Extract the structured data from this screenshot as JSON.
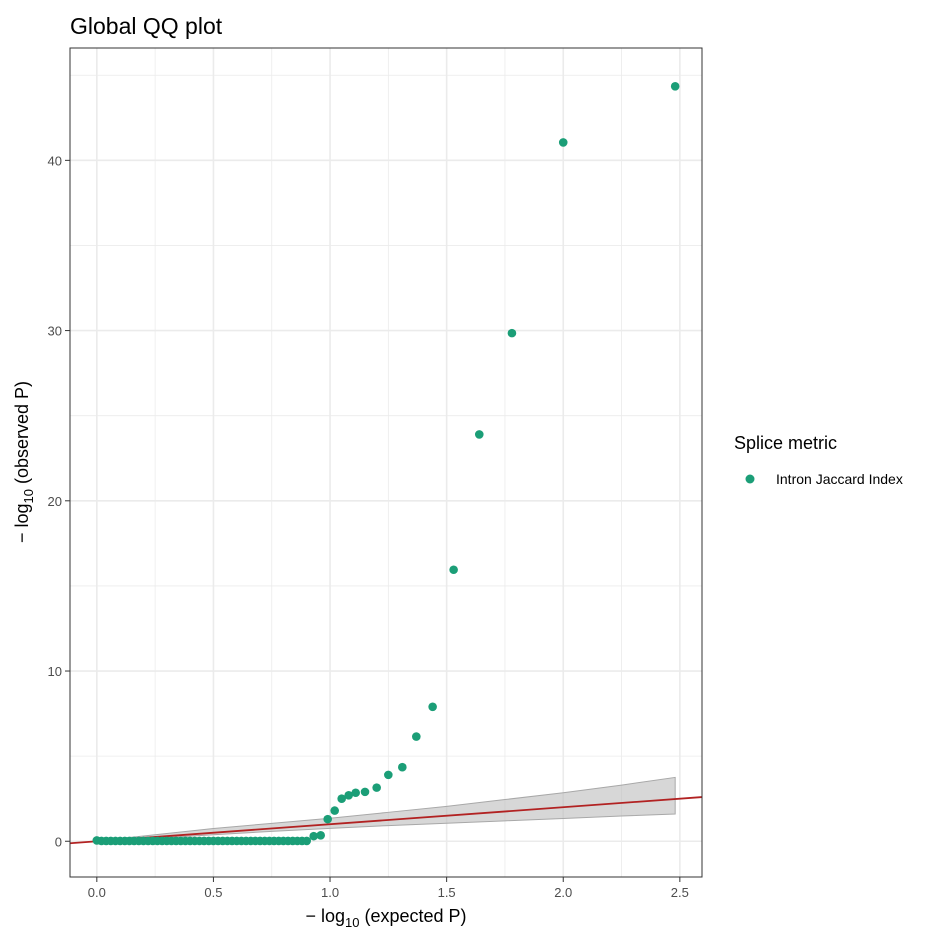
{
  "chart_data": {
    "type": "scatter",
    "title": "Global QQ plot",
    "xlabel": {
      "prefix": "− log",
      "sub": "10",
      "suffix": " (expected P)"
    },
    "ylabel": {
      "prefix": "− log",
      "sub": "10",
      "suffix": " (observed P)"
    },
    "xlim": [
      -0.115,
      2.595
    ],
    "ylim": [
      -2.1,
      46.6
    ],
    "x_ticks": [
      {
        "value": 0.0,
        "label": "0.0"
      },
      {
        "value": 0.5,
        "label": "0.5"
      },
      {
        "value": 1.0,
        "label": "1.0"
      },
      {
        "value": 1.5,
        "label": "1.5"
      },
      {
        "value": 2.0,
        "label": "2.0"
      },
      {
        "value": 2.5,
        "label": "2.5"
      }
    ],
    "y_ticks": [
      {
        "value": 0,
        "label": "0"
      },
      {
        "value": 10,
        "label": "10"
      },
      {
        "value": 20,
        "label": "20"
      },
      {
        "value": 30,
        "label": "30"
      },
      {
        "value": 40,
        "label": "40"
      }
    ],
    "x_minor_ticks": [
      0.25,
      0.75,
      1.25,
      1.75,
      2.25
    ],
    "y_minor_ticks": [
      5,
      15,
      25,
      35,
      45
    ],
    "grid": true,
    "legend": {
      "title": "Splice metric",
      "position": "right"
    },
    "series": [
      {
        "name": "Intron Jaccard Index",
        "color": "#1b9e77",
        "x": [
          0.0,
          0.02,
          0.04,
          0.06,
          0.08,
          0.1,
          0.12,
          0.14,
          0.16,
          0.18,
          0.2,
          0.22,
          0.24,
          0.26,
          0.28,
          0.3,
          0.32,
          0.34,
          0.36,
          0.38,
          0.4,
          0.42,
          0.44,
          0.46,
          0.48,
          0.5,
          0.52,
          0.54,
          0.56,
          0.58,
          0.6,
          0.62,
          0.64,
          0.66,
          0.68,
          0.7,
          0.72,
          0.74,
          0.76,
          0.78,
          0.8,
          0.82,
          0.84,
          0.86,
          0.88,
          0.9,
          0.93,
          0.96,
          0.99,
          1.02,
          1.05,
          1.08,
          1.11,
          1.15,
          1.2,
          1.25,
          1.31,
          1.37,
          1.44,
          1.53,
          1.64,
          1.78,
          2.0,
          2.48
        ],
        "y": [
          0.05,
          0.02,
          0.02,
          0.02,
          0.02,
          0.02,
          0.02,
          0.02,
          0.02,
          0.02,
          0.02,
          0.02,
          0.02,
          0.02,
          0.02,
          0.02,
          0.02,
          0.02,
          0.02,
          0.02,
          0.02,
          0.02,
          0.02,
          0.02,
          0.02,
          0.02,
          0.02,
          0.02,
          0.02,
          0.02,
          0.02,
          0.02,
          0.02,
          0.02,
          0.02,
          0.02,
          0.02,
          0.02,
          0.02,
          0.02,
          0.02,
          0.02,
          0.02,
          0.02,
          0.02,
          0.02,
          0.3,
          0.35,
          1.3,
          1.8,
          2.5,
          2.7,
          2.85,
          2.9,
          3.15,
          3.9,
          4.35,
          6.15,
          7.9,
          15.95,
          23.9,
          29.85,
          41.05,
          44.35
        ]
      }
    ],
    "reference_line": {
      "slope": 1,
      "intercept": 0,
      "color": "#b22222"
    },
    "confidence_band": {
      "color": "#bdbdbd",
      "x": [
        0.0,
        0.25,
        0.5,
        0.75,
        1.0,
        1.25,
        1.5,
        1.75,
        2.0,
        2.25,
        2.48
      ],
      "lower": [
        0.0,
        0.18,
        0.38,
        0.58,
        0.76,
        0.92,
        1.06,
        1.2,
        1.34,
        1.48,
        1.6
      ],
      "upper": [
        0.02,
        0.38,
        0.75,
        1.05,
        1.35,
        1.7,
        2.05,
        2.45,
        2.85,
        3.3,
        3.75
      ]
    }
  }
}
